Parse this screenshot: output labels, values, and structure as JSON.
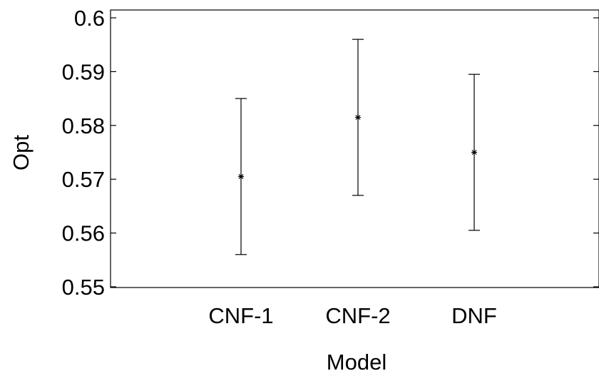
{
  "chart_data": {
    "type": "scatter",
    "subtype": "error-bar",
    "title": "",
    "xlabel": "Model",
    "ylabel": "Opt",
    "categories": [
      "CNF-1",
      "CNF-2",
      "DNF"
    ],
    "values": [
      0.5705,
      0.5815,
      0.575
    ],
    "lower": [
      0.556,
      0.567,
      0.5605
    ],
    "upper": [
      0.585,
      0.596,
      0.5895
    ],
    "ylim": [
      0.55,
      0.6
    ],
    "yticks": [
      0.55,
      0.56,
      0.57,
      0.58,
      0.59,
      0.6
    ],
    "ytick_labels": [
      "0.55",
      "0.56",
      "0.57",
      "0.58",
      "0.59",
      "0.6"
    ],
    "marker": "asterisk",
    "grid": false,
    "legend": "none"
  }
}
